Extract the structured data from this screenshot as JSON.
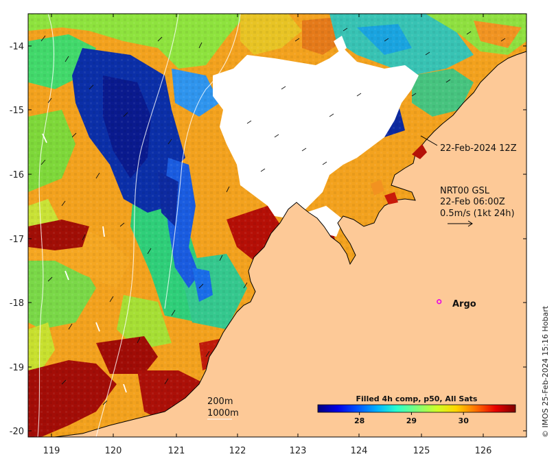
{
  "map": {
    "extent": {
      "lon": [
        118.6,
        126.7
      ],
      "lat": [
        -20.1,
        -13.5
      ]
    },
    "x_ticks": [
      "119",
      "120",
      "121",
      "122",
      "123",
      "124",
      "125",
      "126"
    ],
    "y_ticks": [
      "-14",
      "-15",
      "-16",
      "-17",
      "-18",
      "-19",
      "-20"
    ],
    "land_color": "#fdc997",
    "cloud_color": "#ffffff"
  },
  "annotations": {
    "image_time": "22-Feb-2024 12Z",
    "current_source": "NRT00 GSL",
    "current_time": "22-Feb 06:00Z",
    "current_scale": "0.5m/s (1kt 24h)",
    "argo_label": "Argo",
    "isobath_200": "200m",
    "isobath_1000": "1000m"
  },
  "argo_float": {
    "lon": 125.28,
    "lat": -17.99,
    "color": "#e600e6"
  },
  "colorbar": {
    "title": "Filled 4h comp, p50, All Sats",
    "ticks": [
      "28",
      "29",
      "30"
    ],
    "tick_values": [
      28,
      29,
      30
    ],
    "range": [
      27.2,
      31.0
    ],
    "colors": [
      "#00007f",
      "#0000e5",
      "#0052ff",
      "#00b2ff",
      "#29ffcd",
      "#7dff79",
      "#cdff29",
      "#ffd500",
      "#ff7000",
      "#e80000",
      "#7f0000"
    ]
  },
  "credit": "© IMOS 25-Feb-2024 15:16 Hobart"
}
